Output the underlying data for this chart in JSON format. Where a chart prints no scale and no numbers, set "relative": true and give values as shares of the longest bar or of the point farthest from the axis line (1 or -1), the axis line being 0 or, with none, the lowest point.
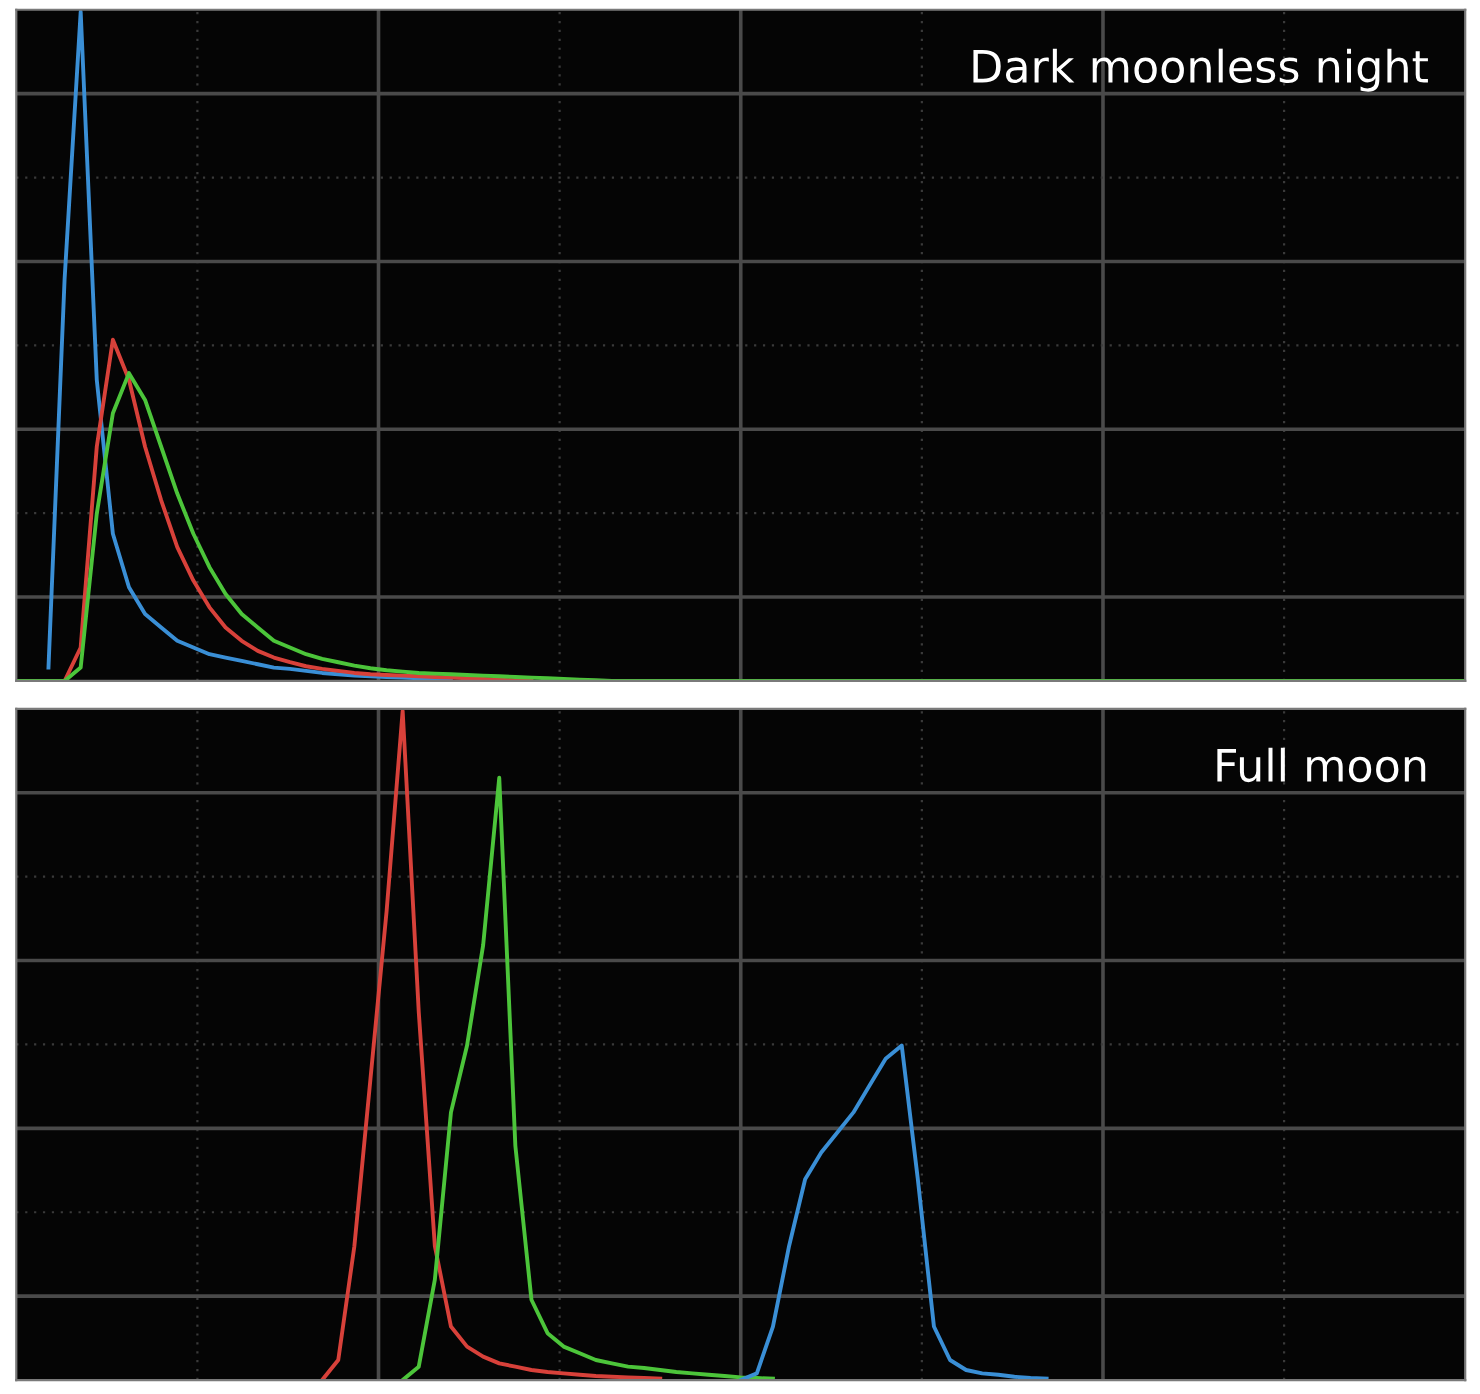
{
  "chart_data": [
    {
      "type": "line",
      "title": "Dark moonless night",
      "relative": true,
      "grid": true,
      "tick_labels": false,
      "legend": false,
      "categories": [
        null,
        null,
        null,
        null,
        null,
        null,
        null,
        null,
        null,
        null,
        null,
        null,
        null,
        null,
        null,
        null,
        null,
        null,
        null,
        null,
        null,
        null,
        null,
        null,
        null,
        null,
        null,
        null,
        null,
        null,
        null,
        null,
        null,
        null,
        null,
        null,
        null,
        null,
        null,
        null,
        null,
        null,
        null,
        null,
        null,
        null,
        null,
        null,
        null,
        null,
        null,
        null,
        null,
        null,
        null,
        null,
        null,
        null,
        null,
        null,
        null,
        null,
        null,
        null,
        null,
        null,
        null,
        null,
        null,
        null,
        null,
        null,
        null,
        null,
        null,
        null,
        null,
        null,
        null,
        null,
        null,
        null,
        null,
        null,
        null,
        null,
        null,
        null,
        null,
        null,
        null
      ],
      "series": [
        {
          "color": "#3a8fd6",
          "values": [
            null,
            null,
            0.02,
            0.6,
            1.0,
            0.45,
            0.22,
            0.14,
            0.1,
            0.08,
            0.06,
            0.05,
            0.04,
            0.035,
            0.03,
            0.025,
            0.02,
            0.018,
            0.015,
            0.012,
            0.01,
            0.008,
            0.007,
            0.006,
            0.005,
            0.004,
            0.003,
            0.003,
            null,
            null,
            null,
            null,
            null,
            null,
            null,
            null,
            null,
            null,
            null,
            null,
            null,
            null,
            null,
            null,
            null,
            null,
            null,
            null,
            null,
            null,
            null,
            null,
            null,
            null,
            null,
            null,
            null,
            null,
            null,
            null,
            null,
            null,
            null,
            null,
            null,
            null,
            null,
            null,
            null,
            null,
            null,
            null,
            null,
            null,
            null,
            null,
            null,
            null,
            null,
            null,
            null,
            null,
            null,
            null,
            null,
            null,
            null,
            null,
            null,
            null,
            null
          ]
        },
        {
          "color": "#d8413a",
          "values": [
            null,
            null,
            null,
            0,
            0.05,
            0.35,
            0.51,
            0.45,
            0.35,
            0.27,
            0.2,
            0.15,
            0.11,
            0.08,
            0.06,
            0.045,
            0.035,
            0.028,
            0.022,
            0.018,
            0.015,
            0.012,
            0.01,
            0.009,
            0.008,
            0.007,
            0.006,
            0.005,
            0.004,
            0.003,
            0.002,
            0.001,
            0.001,
            null,
            null,
            null,
            null,
            null,
            null,
            null,
            null,
            null,
            null,
            null,
            null,
            null,
            null,
            null,
            null,
            null,
            null,
            null,
            null,
            null,
            null,
            null,
            null,
            null,
            null,
            null,
            null,
            null,
            null,
            null,
            null,
            null,
            null,
            null,
            null,
            null,
            null,
            null,
            null,
            null,
            null,
            null,
            null,
            null,
            null,
            null,
            null,
            null,
            null,
            null,
            null,
            null,
            null,
            null,
            null,
            null,
            null
          ]
        },
        {
          "color": "#4cc53a",
          "values": [
            0,
            0,
            0,
            0,
            0.02,
            0.25,
            0.4,
            0.46,
            0.42,
            0.35,
            0.28,
            0.22,
            0.17,
            0.13,
            0.1,
            0.08,
            0.06,
            0.05,
            0.04,
            0.033,
            0.028,
            0.023,
            0.019,
            0.016,
            0.014,
            0.012,
            0.011,
            0.01,
            0.009,
            0.008,
            0.007,
            0.006,
            0.005,
            0.004,
            0.003,
            0.002,
            0.001,
            0,
            0,
            0,
            0,
            0,
            0,
            0,
            0,
            0,
            0,
            0,
            0,
            0,
            0,
            0,
            0,
            0,
            0,
            0,
            0,
            0,
            0,
            0,
            0,
            0,
            0,
            0,
            0,
            0,
            0,
            0,
            0,
            0,
            0,
            0,
            0,
            0,
            0,
            0,
            0,
            0,
            0,
            0,
            0,
            0,
            0,
            0,
            0,
            0,
            0,
            0,
            0,
            0,
            0
          ]
        }
      ]
    },
    {
      "type": "line",
      "title": "Full moon",
      "relative": true,
      "grid": true,
      "tick_labels": false,
      "legend": false,
      "categories": [
        null,
        null,
        null,
        null,
        null,
        null,
        null,
        null,
        null,
        null,
        null,
        null,
        null,
        null,
        null,
        null,
        null,
        null,
        null,
        null,
        null,
        null,
        null,
        null,
        null,
        null,
        null,
        null,
        null,
        null,
        null,
        null,
        null,
        null,
        null,
        null,
        null,
        null,
        null,
        null,
        null,
        null,
        null,
        null,
        null,
        null,
        null,
        null,
        null,
        null,
        null,
        null,
        null,
        null,
        null,
        null,
        null,
        null,
        null,
        null,
        null,
        null,
        null,
        null,
        null,
        null,
        null,
        null,
        null,
        null,
        null,
        null,
        null,
        null,
        null,
        null,
        null,
        null,
        null,
        null,
        null,
        null,
        null,
        null,
        null,
        null,
        null,
        null,
        null,
        null,
        null
      ],
      "series": [
        {
          "color": "#d8413a",
          "values": [
            null,
            null,
            null,
            null,
            null,
            null,
            null,
            null,
            null,
            null,
            null,
            null,
            null,
            null,
            null,
            null,
            null,
            null,
            null,
            0,
            0.03,
            0.2,
            0.45,
            0.7,
            1.0,
            0.55,
            0.2,
            0.08,
            0.05,
            0.035,
            0.025,
            0.02,
            0.015,
            0.012,
            0.01,
            0.008,
            0.006,
            0.005,
            0.004,
            0.003,
            0.002,
            null,
            null,
            null,
            null,
            null,
            null,
            null,
            null,
            null,
            null,
            null,
            null,
            null,
            null,
            null,
            null,
            null,
            null,
            null,
            null,
            null,
            null,
            null,
            null,
            null,
            null,
            null,
            null,
            null,
            null,
            null,
            null,
            null,
            null,
            null,
            null,
            null,
            null,
            null,
            null,
            null,
            null,
            null,
            null,
            null,
            null,
            null,
            null,
            null,
            null
          ]
        },
        {
          "color": "#4cc53a",
          "values": [
            null,
            null,
            null,
            null,
            null,
            null,
            null,
            null,
            null,
            null,
            null,
            null,
            null,
            null,
            null,
            null,
            null,
            null,
            null,
            null,
            null,
            null,
            null,
            null,
            0,
            0.02,
            0.15,
            0.4,
            0.5,
            0.65,
            0.9,
            0.35,
            0.12,
            0.07,
            0.05,
            0.04,
            0.03,
            0.025,
            0.02,
            0.018,
            0.015,
            0.012,
            0.01,
            0.008,
            0.006,
            0.004,
            0.003,
            0.002,
            null,
            null,
            null,
            null,
            null,
            null,
            null,
            null,
            null,
            null,
            null,
            null,
            null,
            null,
            null,
            null,
            null,
            null,
            null,
            null,
            null,
            null,
            null,
            null,
            null,
            null,
            null,
            null,
            null,
            null,
            null,
            null,
            null,
            null,
            null,
            null,
            null,
            null,
            null,
            null,
            null,
            null,
            null
          ]
        },
        {
          "color": "#3a8fd6",
          "values": [
            null,
            null,
            null,
            null,
            null,
            null,
            null,
            null,
            null,
            null,
            null,
            null,
            null,
            null,
            null,
            null,
            null,
            null,
            null,
            null,
            null,
            null,
            null,
            null,
            null,
            null,
            null,
            null,
            null,
            null,
            null,
            null,
            null,
            null,
            null,
            null,
            null,
            null,
            null,
            null,
            null,
            null,
            null,
            null,
            null,
            0,
            0.01,
            0.08,
            0.2,
            0.3,
            0.34,
            0.37,
            0.4,
            0.44,
            0.48,
            0.5,
            0.3,
            0.08,
            0.03,
            0.015,
            0.01,
            0.008,
            0.005,
            0.003,
            0.002,
            null,
            null,
            null,
            null,
            null,
            null,
            null,
            null,
            null,
            null,
            null,
            null,
            null,
            null,
            null,
            null,
            null,
            null,
            null,
            null,
            null,
            null,
            null,
            null,
            null,
            null
          ]
        }
      ]
    }
  ]
}
